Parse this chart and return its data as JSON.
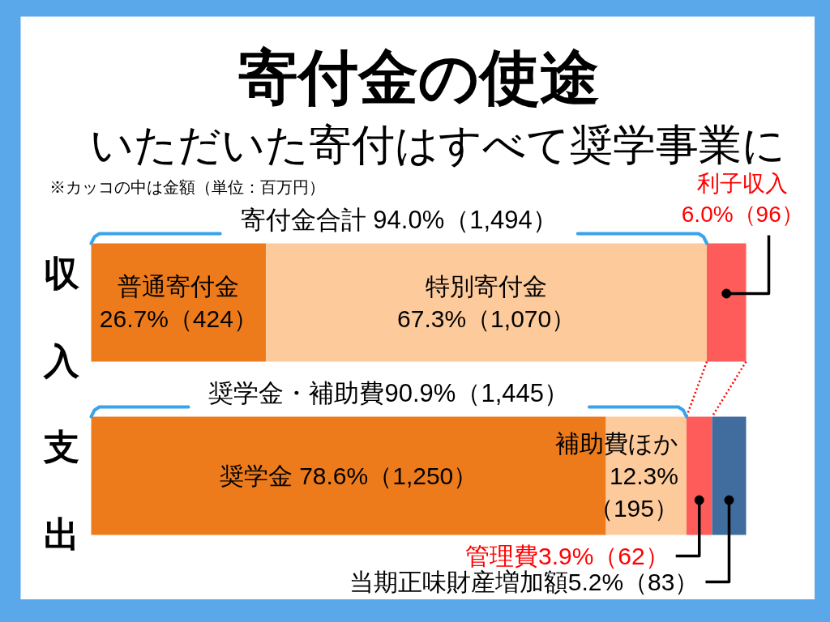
{
  "chart_data": {
    "type": "bar",
    "orientation": "horizontal",
    "stacked": true,
    "title": "寄付金の使途",
    "subtitle": "いただいた寄付はすべて奨学事業に",
    "categories": [
      "収入",
      "支出"
    ],
    "xlim": [
      0,
      100
    ],
    "tick_labels": "y",
    "series": [
      {
        "color": "#ee7b1b",
        "values": [
          26.7,
          78.6
        ],
        "value_labels": [
          "普通寄付金\n26.7%（424）",
          "奨学金 78.6%（1,250）"
        ]
      },
      {
        "color": "#fdca9c",
        "values": [
          67.3,
          12.3
        ],
        "value_labels": [
          "特別寄付金\n67.3%（1,070）",
          "補助費ほか\n12.3%\n（195）"
        ]
      },
      {
        "color": "#fe5b5b",
        "values": [
          6.0,
          3.9
        ],
        "value_labels": [
          "利子収入\n6.0%（96）",
          "管理費3.9%（62）"
        ]
      },
      {
        "color": "#416c9e",
        "values": [
          null,
          5.2
        ],
        "value_labels": [
          null,
          "当期正味財産増加額5.2%（83）"
        ]
      }
    ],
    "annotations": [
      "※カッコの中は金額（単位：百万円）",
      "寄付金合計 94.0%（1,494）",
      "奨学金・補助費90.9%（1,445）"
    ]
  }
}
